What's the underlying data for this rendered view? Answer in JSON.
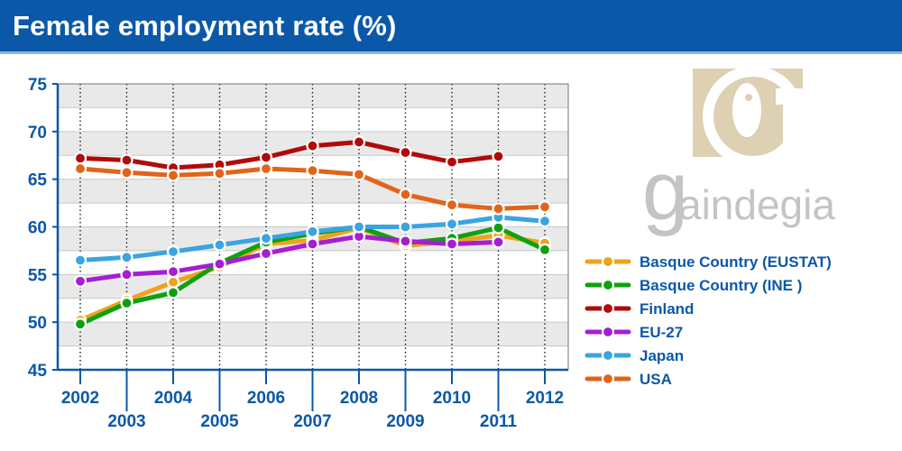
{
  "header": {
    "title": "Female employment rate (%)"
  },
  "logo": {
    "text": "gaindegia"
  },
  "chart_data": {
    "type": "line",
    "title": "Female employment rate (%)",
    "xlabel": "",
    "ylabel": "",
    "x": [
      2002,
      2003,
      2004,
      2005,
      2006,
      2007,
      2008,
      2009,
      2010,
      2011,
      2012
    ],
    "x_tick_labels": [
      "2002",
      "2003",
      "2004",
      "2005",
      "2006",
      "2007",
      "2008",
      "2009",
      "2010",
      "2011",
      "2012"
    ],
    "ylim": [
      45,
      75
    ],
    "y_ticks": [
      45,
      50,
      55,
      60,
      65,
      70,
      75
    ],
    "grid": true,
    "legend_position": "right",
    "series": [
      {
        "name": "Basque Country (EUSTAT)",
        "color": "#f0a21a",
        "values": [
          50.2,
          52.3,
          54.2,
          55.8,
          58.2,
          58.6,
          59.9,
          58.0,
          58.5,
          59.1,
          58.3
        ]
      },
      {
        "name": "Basque Country (INE )",
        "color": "#0ea10e",
        "values": [
          49.8,
          52.0,
          53.1,
          56.2,
          58.4,
          59.3,
          60.0,
          58.3,
          58.8,
          59.9,
          57.6
        ]
      },
      {
        "name": "Finland",
        "color": "#b00b0b",
        "values": [
          67.2,
          67.0,
          66.2,
          66.5,
          67.3,
          68.5,
          68.9,
          67.8,
          66.8,
          67.4,
          null
        ]
      },
      {
        "name": "EU-27",
        "color": "#a51ed2",
        "values": [
          54.3,
          55.0,
          55.3,
          56.1,
          57.2,
          58.2,
          59.0,
          58.5,
          58.2,
          58.4,
          null
        ]
      },
      {
        "name": "Japan",
        "color": "#3aa4e0",
        "values": [
          56.5,
          56.8,
          57.4,
          58.1,
          58.8,
          59.5,
          60.0,
          60.0,
          60.3,
          61.0,
          60.6
        ]
      },
      {
        "name": "USA",
        "color": "#e0651a",
        "values": [
          66.1,
          65.7,
          65.4,
          65.6,
          66.1,
          65.9,
          65.5,
          63.4,
          62.3,
          61.9,
          62.1
        ]
      }
    ]
  }
}
